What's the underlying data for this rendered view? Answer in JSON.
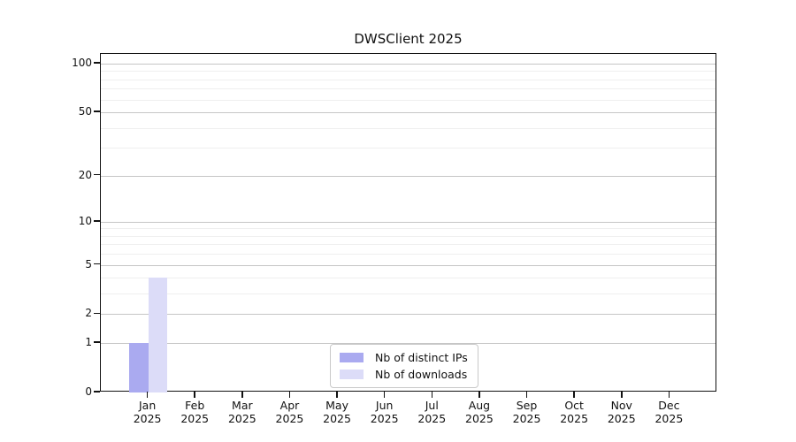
{
  "chart_data": {
    "type": "bar",
    "title": "DWSClient 2025",
    "categories": [
      "Jan",
      "Feb",
      "Mar",
      "Apr",
      "May",
      "Jun",
      "Jul",
      "Aug",
      "Sep",
      "Oct",
      "Nov",
      "Dec"
    ],
    "year_label": "2025",
    "series": [
      {
        "name": "Nb of distinct IPs",
        "color": "#aaaaf0",
        "values": [
          1,
          0,
          0,
          0,
          0,
          0,
          0,
          0,
          0,
          0,
          0,
          0
        ]
      },
      {
        "name": "Nb of downloads",
        "color": "#dcdcf8",
        "values": [
          4,
          0,
          0,
          0,
          0,
          0,
          0,
          0,
          0,
          0,
          0,
          0
        ]
      }
    ],
    "y_axis": {
      "scale": "log1p",
      "ticks": [
        0,
        1,
        2,
        5,
        10,
        20,
        50,
        100
      ],
      "minor_gridlines": [
        3,
        4,
        6,
        7,
        8,
        9,
        30,
        40,
        60,
        70,
        80,
        90
      ],
      "range": [
        0,
        115
      ]
    },
    "xlabel": "",
    "ylabel": "",
    "grid": "horizontal",
    "legend_position": "bottom-center"
  }
}
